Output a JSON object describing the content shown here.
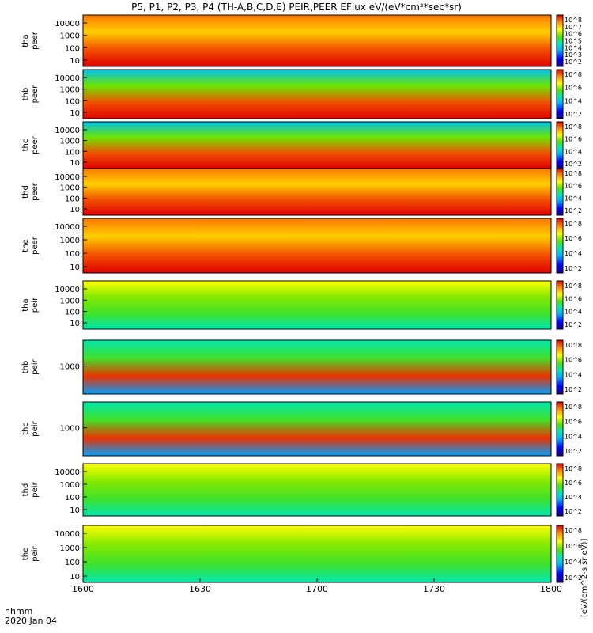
{
  "chart_data": {
    "type": "heatmap",
    "title": "P5, P1, P2, P3, P4 (TH-A,B,C,D,E) PEIR,PEER EFlux eV/(eV*cm²*sec*sr)",
    "xlabel_lines": [
      "hhmm",
      "2020 Jan 04"
    ],
    "x_ticks": [
      "1600",
      "1630",
      "1700",
      "1730",
      "1800"
    ],
    "x_range": [
      "1600",
      "1800"
    ],
    "colorbar_unit": "[eV/(cm^2-s sr eV)]",
    "colorbar_ticks": [
      "10^2",
      "10^4",
      "10^6",
      "10^8"
    ],
    "panels": [
      {
        "id": "tha_peer",
        "ylabel": [
          "tha",
          "peer"
        ],
        "yticks": [
          "10000",
          "1000",
          "100",
          "10"
        ],
        "colorbar": [
          "10^2",
          "10^3",
          "10^4",
          "10^5",
          "10^6",
          "10^7",
          "10^8"
        ]
      },
      {
        "id": "thb_peer",
        "ylabel": [
          "thb",
          "peer"
        ],
        "yticks": [
          "10000",
          "1000",
          "100",
          "10"
        ],
        "colorbar": [
          "10^2",
          "10^4",
          "10^6",
          "10^8"
        ]
      },
      {
        "id": "thc_peer",
        "ylabel": [
          "thc",
          "peer"
        ],
        "yticks": [
          "10000",
          "1000",
          "100",
          "10"
        ],
        "colorbar": [
          "10^2",
          "10^4",
          "10^6",
          "10^8"
        ]
      },
      {
        "id": "thd_peer",
        "ylabel": [
          "thd",
          "peer"
        ],
        "yticks": [
          "10000",
          "1000",
          "100",
          "10"
        ],
        "colorbar": [
          "10^2",
          "10^4",
          "10^6",
          "10^8"
        ]
      },
      {
        "id": "the_peer",
        "ylabel": [
          "the",
          "peer"
        ],
        "yticks": [
          "10000",
          "1000",
          "100",
          "10"
        ],
        "colorbar": [
          "10^2",
          "10^4",
          "10^6",
          "10^8"
        ]
      },
      {
        "id": "tha_peir",
        "ylabel": [
          "tha",
          "peir"
        ],
        "yticks": [
          "10000",
          "1000",
          "100",
          "10"
        ],
        "colorbar": [
          "10^2",
          "10^4",
          "10^6",
          "10^8"
        ]
      },
      {
        "id": "thb_peir",
        "ylabel": [
          "thb",
          "peir"
        ],
        "yticks": [
          "1000"
        ],
        "colorbar": [
          "10^2",
          "10^4",
          "10^6",
          "10^8"
        ]
      },
      {
        "id": "thc_peir",
        "ylabel": [
          "thc",
          "peir"
        ],
        "yticks": [
          "1000"
        ],
        "colorbar": [
          "10^2",
          "10^4",
          "10^6",
          "10^8"
        ]
      },
      {
        "id": "thd_peir",
        "ylabel": [
          "thd",
          "peir"
        ],
        "yticks": [
          "10000",
          "1000",
          "100",
          "10"
        ],
        "colorbar": [
          "10^2",
          "10^4",
          "10^6",
          "10^8"
        ]
      },
      {
        "id": "the_peir",
        "ylabel": [
          "the",
          "peir"
        ],
        "yticks": [
          "10000",
          "1000",
          "100",
          "10"
        ],
        "colorbar": [
          "10^2",
          "10^4",
          "10^6",
          "10^8"
        ]
      }
    ]
  }
}
